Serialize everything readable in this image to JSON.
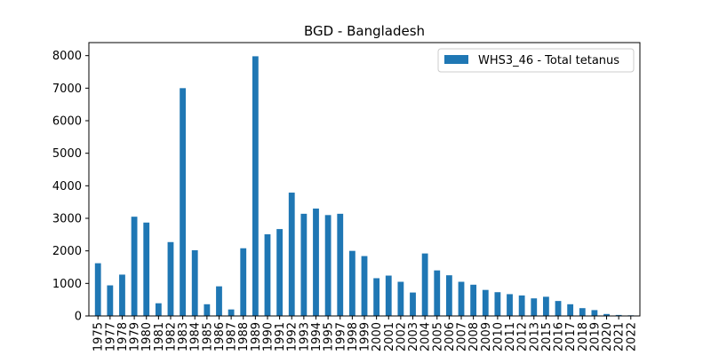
{
  "chart_data": {
    "type": "bar",
    "title": "BGD - Bangladesh",
    "xlabel": "",
    "ylabel": "",
    "ylim": [
      0,
      8400
    ],
    "yticks": [
      0,
      1000,
      2000,
      3000,
      4000,
      5000,
      6000,
      7000,
      8000
    ],
    "categories": [
      "1975",
      "1977",
      "1978",
      "1979",
      "1980",
      "1981",
      "1982",
      "1983",
      "1984",
      "1985",
      "1986",
      "1987",
      "1988",
      "1989",
      "1990",
      "1991",
      "1992",
      "1993",
      "1994",
      "1995",
      "1997",
      "1998",
      "1999",
      "2000",
      "2001",
      "2002",
      "2003",
      "2004",
      "2005",
      "2006",
      "2007",
      "2008",
      "2009",
      "2010",
      "2011",
      "2012",
      "2013",
      "2015",
      "2016",
      "2017",
      "2018",
      "2019",
      "2020",
      "2021",
      "2022"
    ],
    "series": [
      {
        "name": "WHS3_46 - Total tetanus",
        "color": "#1f77b4",
        "values": [
          1620,
          940,
          1270,
          3050,
          2870,
          390,
          2270,
          7000,
          2020,
          360,
          910,
          200,
          2080,
          7980,
          2510,
          2670,
          3790,
          3140,
          3300,
          3100,
          3140,
          2000,
          1840,
          1160,
          1240,
          1050,
          720,
          1920,
          1400,
          1250,
          1050,
          960,
          800,
          730,
          670,
          630,
          540,
          590,
          460,
          360,
          240,
          180,
          60,
          30,
          20
        ]
      }
    ],
    "legend_position": "top-right",
    "grid": false
  }
}
